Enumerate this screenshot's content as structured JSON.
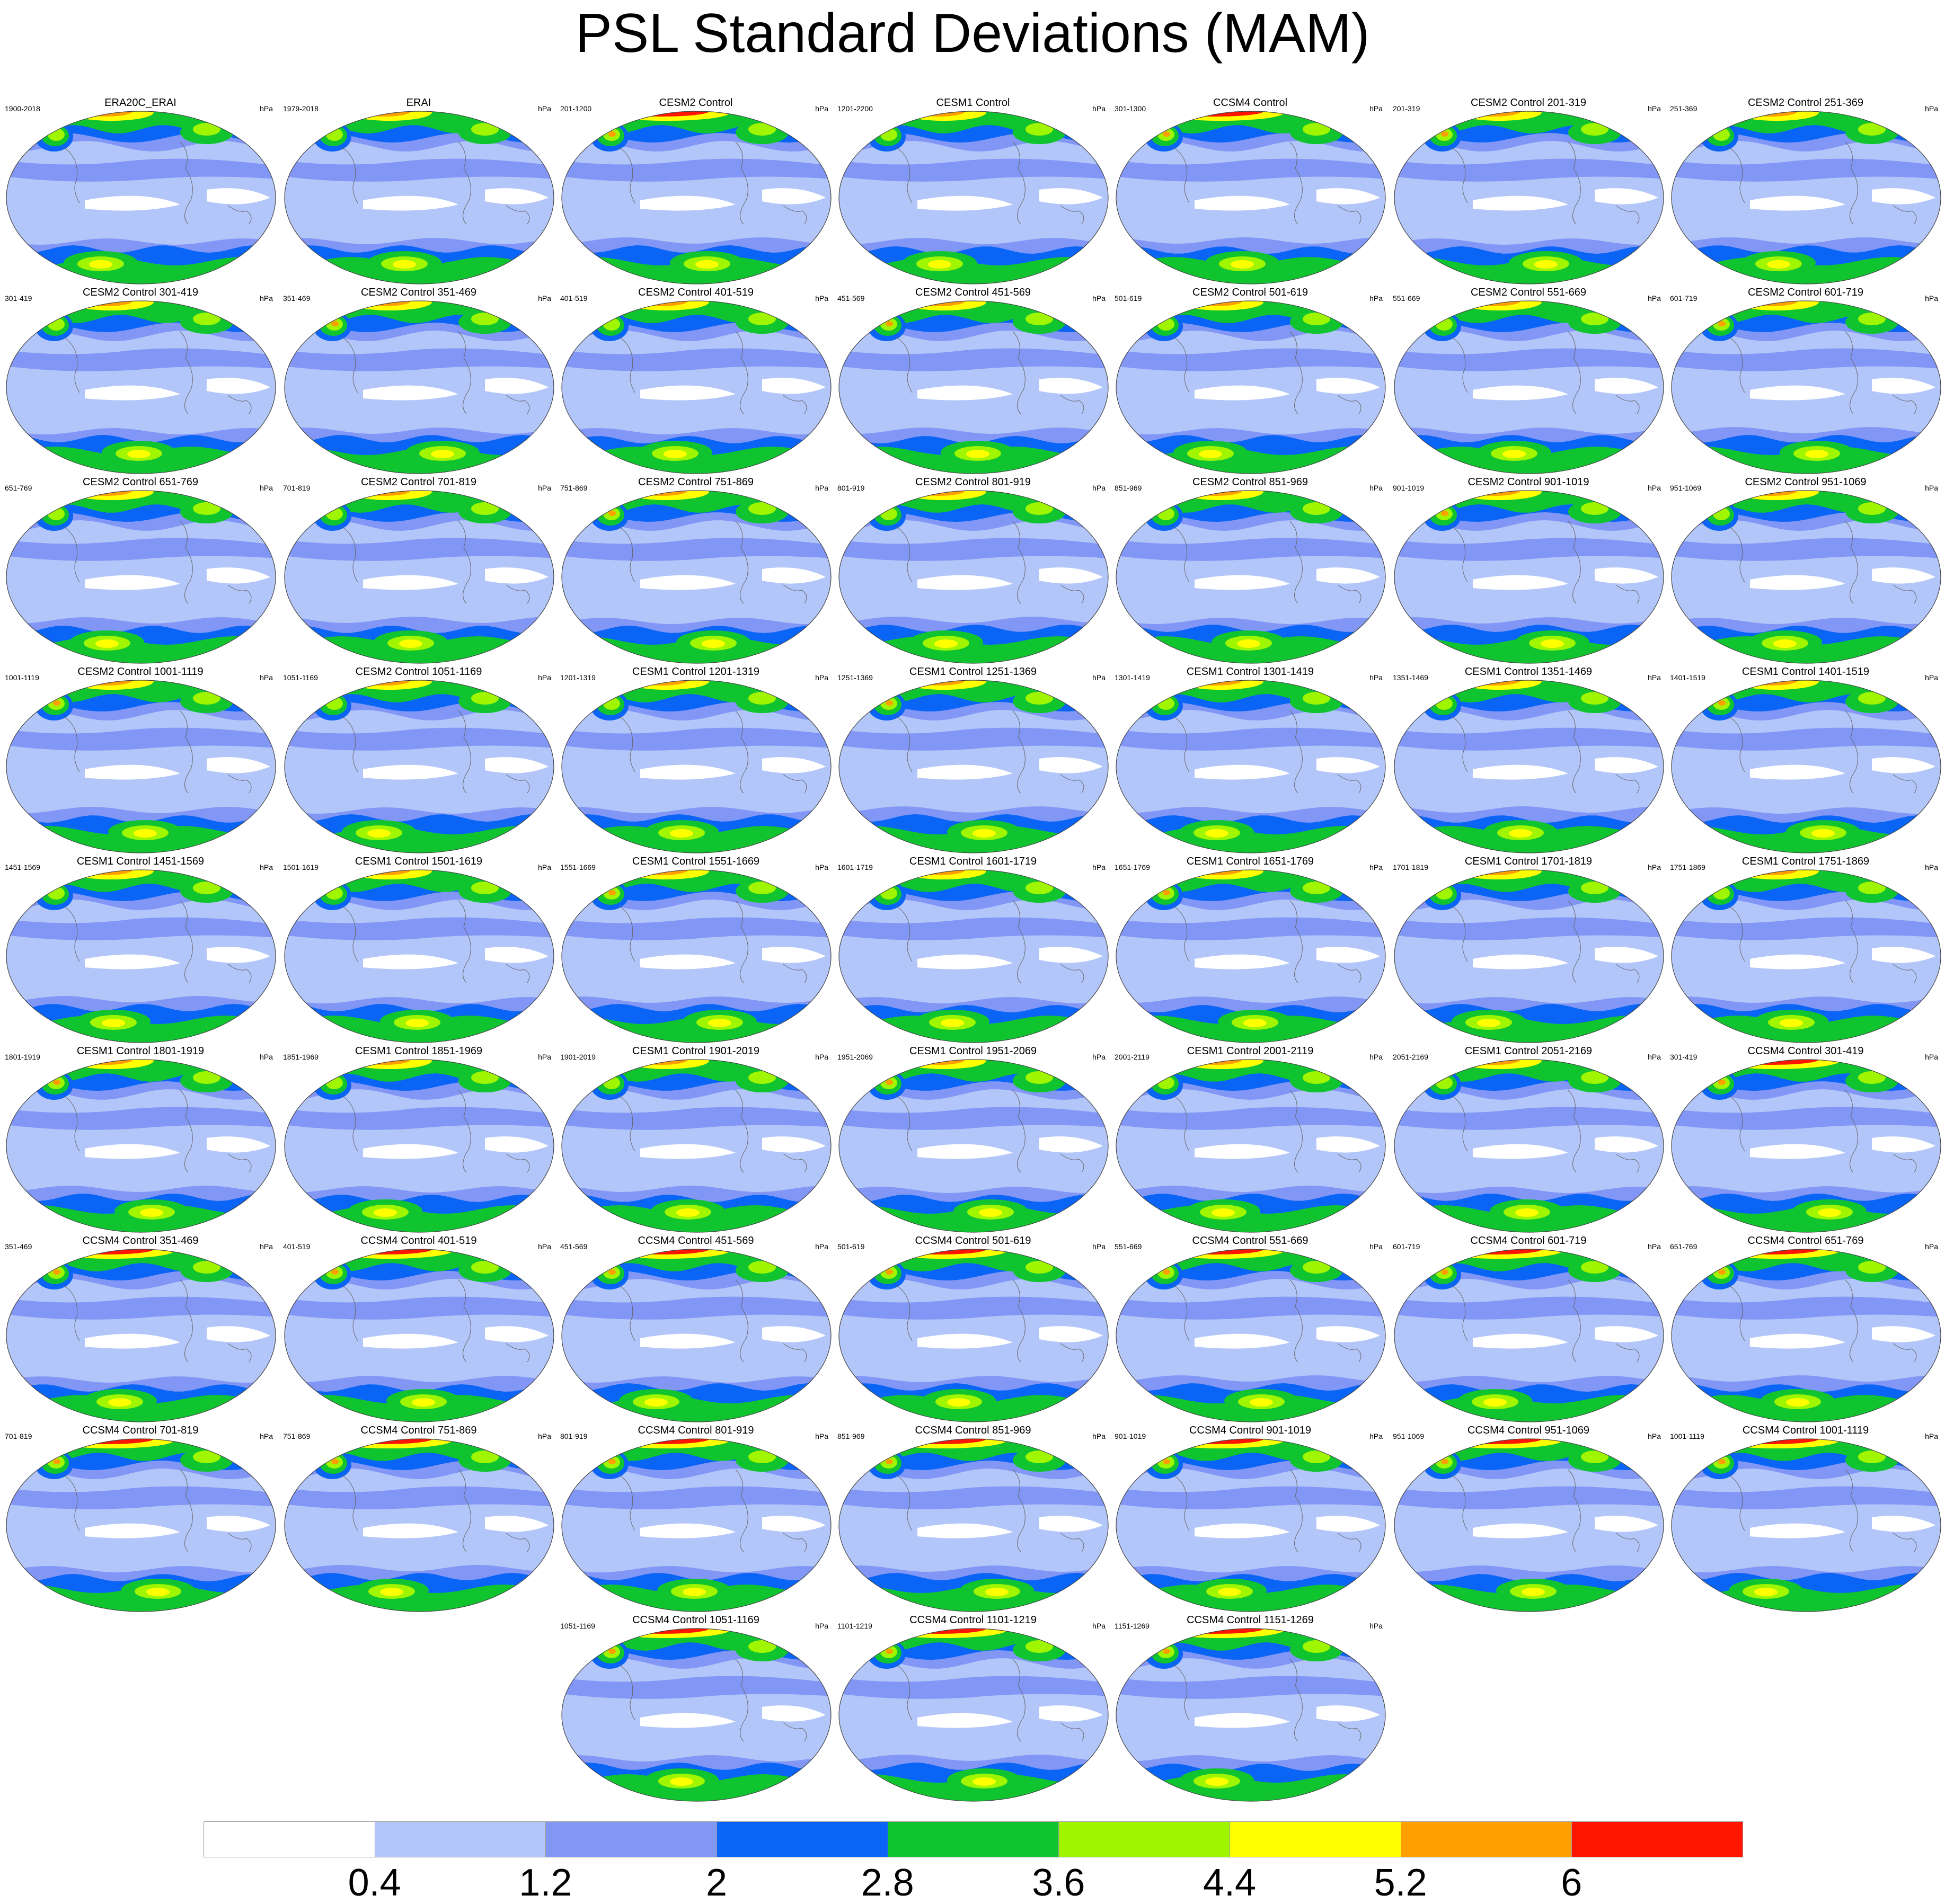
{
  "title": "PSL Standard Deviations (MAM)",
  "units": "hPa",
  "colorbar": {
    "colors": [
      "#ffffff",
      "#b3c6fa",
      "#8196f5",
      "#0a64f5",
      "#10c430",
      "#a0f500",
      "#ffff00",
      "#ffa000",
      "#ff1500"
    ],
    "labels": [
      "0.4",
      "1.2",
      "2",
      "2.8",
      "3.6",
      "4.4",
      "5.2",
      "6"
    ]
  },
  "panels": [
    {
      "name": "ERA20C_ERAI",
      "years": "1900-2018"
    },
    {
      "name": "ERAI",
      "years": "1979-2018"
    },
    {
      "name": "CESM2 Control",
      "years": "201-1200"
    },
    {
      "name": "CESM1 Control",
      "years": "1201-2200"
    },
    {
      "name": "CCSM4 Control",
      "years": "301-1300"
    },
    {
      "name": "CESM2 Control 201-319",
      "years": "201-319"
    },
    {
      "name": "CESM2 Control 251-369",
      "years": "251-369"
    },
    {
      "name": "CESM2 Control 301-419",
      "years": "301-419"
    },
    {
      "name": "CESM2 Control 351-469",
      "years": "351-469"
    },
    {
      "name": "CESM2 Control 401-519",
      "years": "401-519"
    },
    {
      "name": "CESM2 Control 451-569",
      "years": "451-569"
    },
    {
      "name": "CESM2 Control 501-619",
      "years": "501-619"
    },
    {
      "name": "CESM2 Control 551-669",
      "years": "551-669"
    },
    {
      "name": "CESM2 Control 601-719",
      "years": "601-719"
    },
    {
      "name": "CESM2 Control 651-769",
      "years": "651-769"
    },
    {
      "name": "CESM2 Control 701-819",
      "years": "701-819"
    },
    {
      "name": "CESM2 Control 751-869",
      "years": "751-869"
    },
    {
      "name": "CESM2 Control 801-919",
      "years": "801-919"
    },
    {
      "name": "CESM2 Control 851-969",
      "years": "851-969"
    },
    {
      "name": "CESM2 Control 901-1019",
      "years": "901-1019"
    },
    {
      "name": "CESM2 Control 951-1069",
      "years": "951-1069"
    },
    {
      "name": "CESM2 Control 1001-1119",
      "years": "1001-1119"
    },
    {
      "name": "CESM2 Control 1051-1169",
      "years": "1051-1169"
    },
    {
      "name": "CESM1 Control 1201-1319",
      "years": "1201-1319"
    },
    {
      "name": "CESM1 Control 1251-1369",
      "years": "1251-1369"
    },
    {
      "name": "CESM1 Control 1301-1419",
      "years": "1301-1419"
    },
    {
      "name": "CESM1 Control 1351-1469",
      "years": "1351-1469"
    },
    {
      "name": "CESM1 Control 1401-1519",
      "years": "1401-1519"
    },
    {
      "name": "CESM1 Control 1451-1569",
      "years": "1451-1569"
    },
    {
      "name": "CESM1 Control 1501-1619",
      "years": "1501-1619"
    },
    {
      "name": "CESM1 Control 1551-1669",
      "years": "1551-1669"
    },
    {
      "name": "CESM1 Control 1601-1719",
      "years": "1601-1719"
    },
    {
      "name": "CESM1 Control 1651-1769",
      "years": "1651-1769"
    },
    {
      "name": "CESM1 Control 1701-1819",
      "years": "1701-1819"
    },
    {
      "name": "CESM1 Control 1751-1869",
      "years": "1751-1869"
    },
    {
      "name": "CESM1 Control 1801-1919",
      "years": "1801-1919"
    },
    {
      "name": "CESM1 Control 1851-1969",
      "years": "1851-1969"
    },
    {
      "name": "CESM1 Control 1901-2019",
      "years": "1901-2019"
    },
    {
      "name": "CESM1 Control 1951-2069",
      "years": "1951-2069"
    },
    {
      "name": "CESM1 Control 2001-2119",
      "years": "2001-2119"
    },
    {
      "name": "CESM1 Control 2051-2169",
      "years": "2051-2169"
    },
    {
      "name": "CCSM4 Control 301-419",
      "years": "301-419"
    },
    {
      "name": "CCSM4 Control 351-469",
      "years": "351-469"
    },
    {
      "name": "CCSM4 Control 401-519",
      "years": "401-519"
    },
    {
      "name": "CCSM4 Control 451-569",
      "years": "451-569"
    },
    {
      "name": "CCSM4 Control 501-619",
      "years": "501-619"
    },
    {
      "name": "CCSM4 Control 551-669",
      "years": "551-669"
    },
    {
      "name": "CCSM4 Control 601-719",
      "years": "601-719"
    },
    {
      "name": "CCSM4 Control 651-769",
      "years": "651-769"
    },
    {
      "name": "CCSM4 Control 701-819",
      "years": "701-819"
    },
    {
      "name": "CCSM4 Control 751-869",
      "years": "751-869"
    },
    {
      "name": "CCSM4 Control 801-919",
      "years": "801-919"
    },
    {
      "name": "CCSM4 Control 851-969",
      "years": "851-969"
    },
    {
      "name": "CCSM4 Control 901-1019",
      "years": "901-1019"
    },
    {
      "name": "CCSM4 Control 951-1069",
      "years": "951-1069"
    },
    {
      "name": "CCSM4 Control 1001-1119",
      "years": "1001-1119"
    },
    {
      "name": "CCSM4 Control 1051-1169",
      "years": "1051-1169"
    },
    {
      "name": "CCSM4 Control 1101-1219",
      "years": "1101-1219"
    },
    {
      "name": "CCSM4 Control 1151-1269",
      "years": "1151-1269"
    }
  ]
}
